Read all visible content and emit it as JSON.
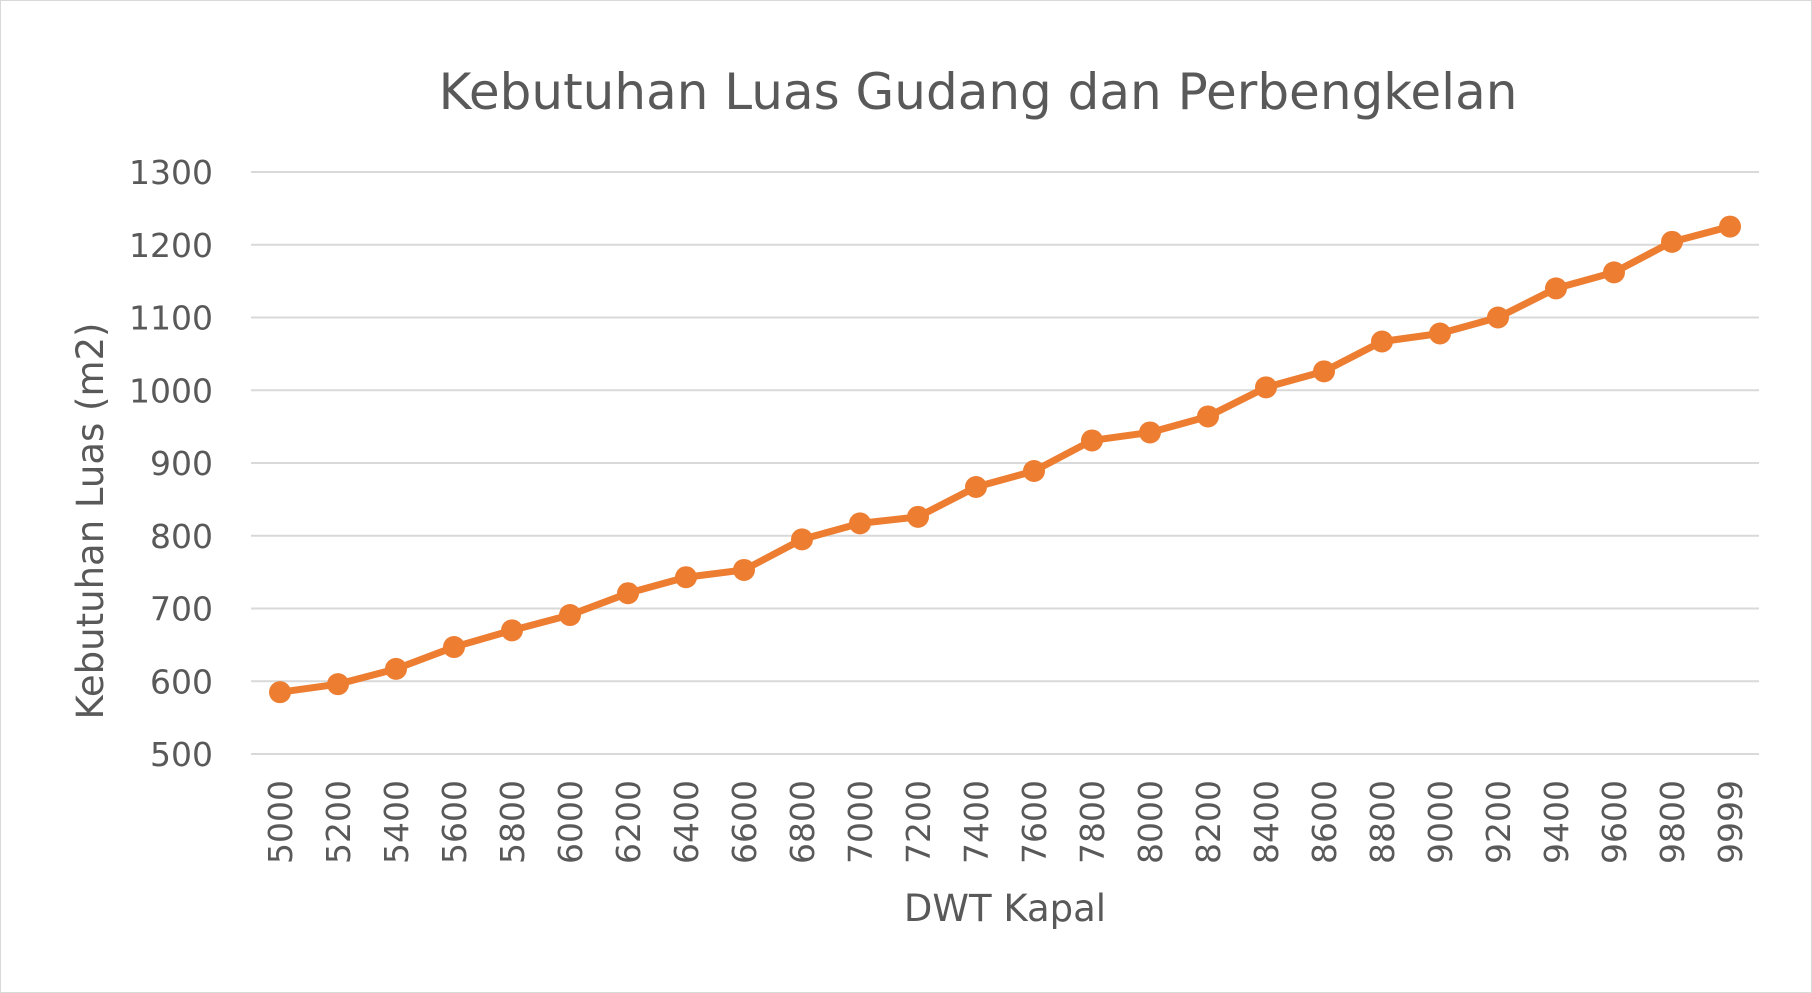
{
  "chart_data": {
    "type": "line",
    "title": "Kebutuhan Luas Gudang dan Perbengkelan",
    "xlabel": "DWT Kapal",
    "ylabel": "Kebutuhan Luas (m2)",
    "categories": [
      "5000",
      "5200",
      "5400",
      "5600",
      "5800",
      "6000",
      "6200",
      "6400",
      "6600",
      "6800",
      "7000",
      "7200",
      "7400",
      "7600",
      "7800",
      "8000",
      "8200",
      "8400",
      "8600",
      "8800",
      "9000",
      "9200",
      "9400",
      "9600",
      "9800",
      "9999"
    ],
    "series": [
      {
        "values": [
          585,
          596,
          617,
          647,
          670,
          691,
          721,
          743,
          753,
          795,
          817,
          826,
          867,
          889,
          931,
          942,
          964,
          1004,
          1026,
          1067,
          1078,
          1100,
          1140,
          1162,
          1204,
          1225
        ],
        "color": "#ed7d31"
      }
    ],
    "ylim": [
      500,
      1300
    ],
    "yticks": [
      500,
      600,
      700,
      800,
      900,
      1000,
      1100,
      1200,
      1300
    ],
    "grid": true,
    "legend": "none",
    "markers": "circle"
  }
}
